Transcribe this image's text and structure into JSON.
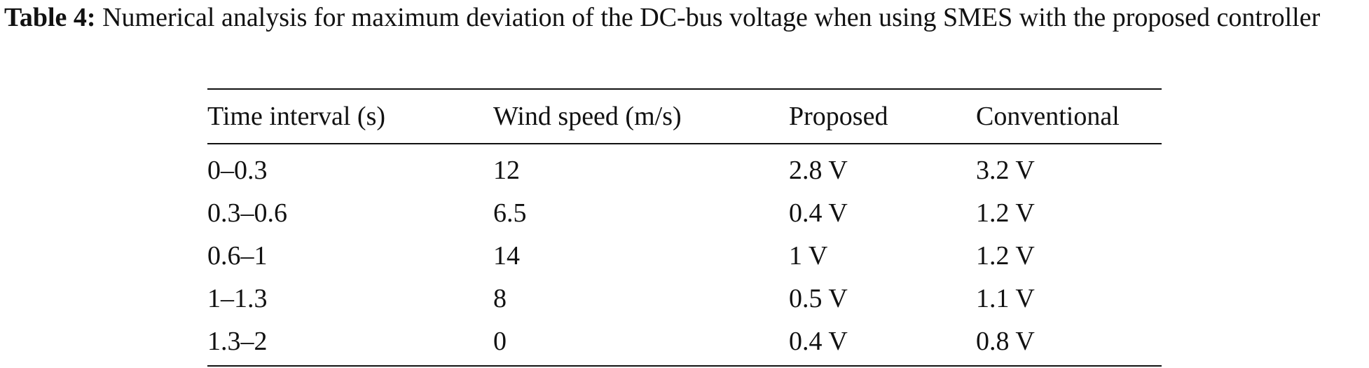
{
  "caption": {
    "label": "Table 4:",
    "text": "Numerical analysis for maximum deviation of the DC-bus voltage when using SMES with the proposed controller"
  },
  "table": {
    "headers": [
      "Time interval (s)",
      "Wind speed (m/s)",
      "Proposed",
      "Conventional"
    ],
    "rows": [
      [
        "0–0.3",
        "12",
        "2.8 V",
        "3.2 V"
      ],
      [
        "0.3–0.6",
        "6.5",
        "0.4 V",
        "1.2 V"
      ],
      [
        "0.6–1",
        "14",
        "1 V",
        "1.2 V"
      ],
      [
        "1–1.3",
        "8",
        "0.5 V",
        "1.1 V"
      ],
      [
        "1.3–2",
        "0",
        "0.4 V",
        "0.8 V"
      ]
    ]
  }
}
